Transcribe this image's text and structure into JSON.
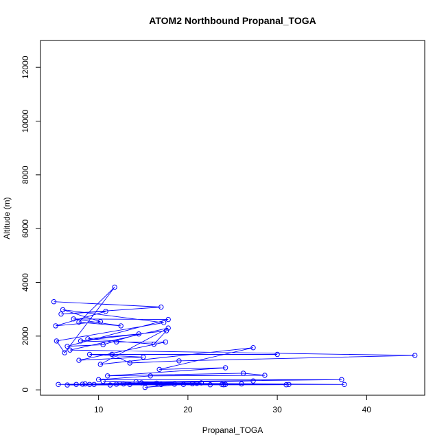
{
  "chart_data": {
    "type": "line",
    "title": "ATOM2 Northbound Propanal_TOGA",
    "xlabel": "Propanal_TOGA",
    "ylabel": "Altitude (m)",
    "xlim": [
      3.5,
      46.5
    ],
    "ylim": [
      -200,
      13000
    ],
    "xticks": [
      10,
      20,
      30,
      40
    ],
    "yticks": [
      0,
      2000,
      4000,
      6000,
      8000,
      10000,
      12000
    ],
    "grid": false,
    "marker": "open-circle",
    "series_color": "#0000ff",
    "series": [
      {
        "points": [
          [
            5.0,
            3280
          ],
          [
            17.0,
            3080
          ],
          [
            5.8,
            2820
          ],
          [
            10.8,
            2920
          ],
          [
            5.2,
            2380
          ],
          [
            10.2,
            2540
          ],
          [
            6.0,
            2980
          ],
          [
            17.3,
            2500
          ],
          [
            5.3,
            1820
          ],
          [
            6.2,
            1380
          ],
          [
            11.8,
            3820
          ],
          [
            7.8,
            2520
          ],
          [
            12.5,
            2380
          ],
          [
            7.2,
            2640
          ],
          [
            17.8,
            2620
          ],
          [
            6.5,
            1620
          ],
          [
            10.5,
            1680
          ],
          [
            14.5,
            2080
          ],
          [
            8.8,
            1900
          ],
          [
            16.2,
            1700
          ],
          [
            17.6,
            2200
          ],
          [
            8.0,
            1820
          ],
          [
            12.0,
            1780
          ],
          [
            17.5,
            1780
          ],
          [
            7.8,
            1100
          ],
          [
            15.0,
            1220
          ],
          [
            9.0,
            1320
          ],
          [
            30.0,
            1320
          ],
          [
            11.5,
            1320
          ],
          [
            13.5,
            1000
          ],
          [
            19.0,
            1080
          ],
          [
            45.4,
            1280
          ],
          [
            6.8,
            1480
          ],
          [
            17.8,
            2300
          ],
          [
            10.2,
            950
          ],
          [
            27.3,
            1570
          ],
          [
            16.8,
            760
          ],
          [
            24.2,
            820
          ],
          [
            11.0,
            520
          ],
          [
            26.2,
            620
          ],
          [
            28.6,
            540
          ],
          [
            15.8,
            520
          ],
          [
            10.0,
            380
          ],
          [
            37.2,
            380
          ],
          [
            14.2,
            300
          ],
          [
            27.3,
            330
          ],
          [
            5.5,
            200
          ],
          [
            31.3,
            200
          ],
          [
            8.5,
            220
          ],
          [
            24.0,
            190
          ],
          [
            12.0,
            210
          ],
          [
            37.5,
            200
          ],
          [
            16.5,
            250
          ],
          [
            21.0,
            240
          ],
          [
            9.0,
            200
          ],
          [
            31.0,
            190
          ],
          [
            6.5,
            180
          ],
          [
            13.5,
            200
          ],
          [
            20.5,
            230
          ],
          [
            15.2,
            90
          ],
          [
            18.5,
            210
          ],
          [
            7.5,
            200
          ],
          [
            24.2,
            200
          ],
          [
            11.3,
            180
          ],
          [
            22.5,
            190
          ],
          [
            14.8,
            260
          ],
          [
            26.0,
            220
          ],
          [
            9.5,
            200
          ],
          [
            19.5,
            200
          ],
          [
            8.2,
            210
          ],
          [
            21.5,
            260
          ],
          [
            12.8,
            220
          ],
          [
            17.0,
            200
          ],
          [
            10.5,
            320
          ],
          [
            23.8,
            200
          ]
        ]
      }
    ]
  }
}
